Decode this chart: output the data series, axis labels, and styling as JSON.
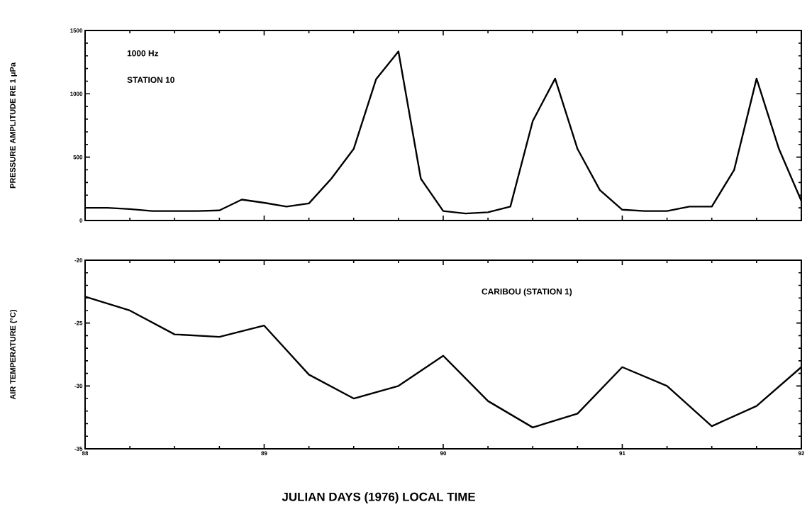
{
  "chart_data": [
    {
      "type": "line",
      "ylabel": "PRESSURE AMPLITUDE RE 1 μPa",
      "annotations": [
        "1000 Hz",
        "STATION 10"
      ],
      "x": [
        88,
        88.125,
        88.25,
        88.375,
        88.5,
        88.625,
        88.75,
        88.875,
        89,
        89.125,
        89.25,
        89.375,
        89.5,
        89.625,
        89.75,
        89.875,
        90,
        90.125,
        90.25,
        90.375,
        90.5,
        90.625,
        90.75,
        90.875,
        91,
        91.125,
        91.25,
        91.375,
        91.5,
        91.625,
        91.75,
        91.875,
        92
      ],
      "series": [
        {
          "color": "#000000",
          "values": [
            100,
            100,
            90,
            75,
            75,
            75,
            80,
            165,
            140,
            110,
            135,
            330,
            565,
            1115,
            1335,
            330,
            75,
            55,
            65,
            110,
            785,
            1120,
            565,
            240,
            85,
            75,
            75,
            110,
            110,
            400,
            1120,
            565,
            155
          ]
        }
      ],
      "xlim": [
        88,
        92
      ],
      "xticks": [
        88,
        89,
        90,
        91,
        92
      ],
      "ylim": [
        0,
        1500
      ],
      "yticks": [
        0,
        500,
        1000,
        1500
      ],
      "tick_labels": "y"
    },
    {
      "type": "line",
      "ylabel": "AIR TEMPERATURE (°C)",
      "xlabel": "JULIAN DAYS (1976) LOCAL TIME",
      "annotations": [
        "CARIBOU (STATION 1)"
      ],
      "x": [
        88,
        88.25,
        88.5,
        88.75,
        89,
        89.25,
        89.5,
        89.75,
        90,
        90.25,
        90.5,
        90.75,
        91,
        91.25,
        91.5,
        91.75,
        92
      ],
      "series": [
        {
          "color": "#000000",
          "values": [
            -22.9,
            -24.0,
            -25.9,
            -26.1,
            -25.2,
            -29.1,
            -31.0,
            -30.0,
            -27.6,
            -31.2,
            -33.3,
            -32.2,
            -28.5,
            -30.0,
            -33.2,
            -31.6,
            -28.5
          ]
        }
      ],
      "xlim": [
        88,
        92
      ],
      "xticks": [
        88,
        89,
        90,
        91,
        92
      ],
      "ylim": [
        -35,
        -20
      ],
      "yticks": [
        -35,
        -30,
        -25,
        -20
      ]
    }
  ]
}
